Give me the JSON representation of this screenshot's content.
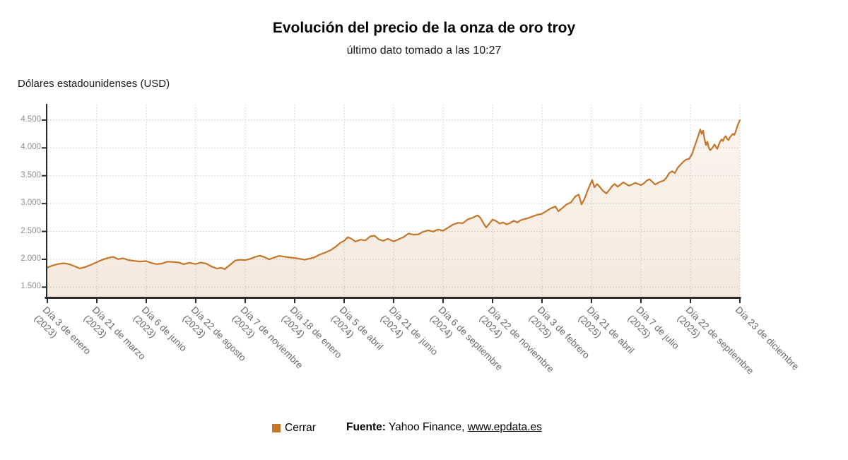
{
  "header": {
    "title": "Evolución del precio de la onza de oro troy",
    "subtitle": "último dato tomado a las 10:27"
  },
  "y_axis_title": "Dólares estadounidenses (USD)",
  "legend": {
    "label": "Cerrar"
  },
  "footer": {
    "source_label": "Fuente:",
    "source_text": " Yahoo Finance, ",
    "link_text": "www.epdata.es"
  },
  "colors": {
    "line": "#C4762A",
    "area_top": "rgba(196,118,42,0.08)",
    "area_bottom": "rgba(196,118,42,0.16)",
    "grid": "#CBD0D6",
    "axis": "#2B2B2B",
    "y_label": "#8C8C8C",
    "x_label": "#6B6B6B"
  },
  "chart_data": {
    "type": "area",
    "title": "Evolución del precio de la onza de oro troy",
    "subtitle": "último dato tomado a las 10:27",
    "ylabel": "Dólares estadounidenses (USD)",
    "xlabel": "",
    "series_name": "Cerrar",
    "legend_position": "bottom",
    "grid": true,
    "ylim": [
      1327,
      4778
    ],
    "x_span": 980,
    "y_ticks": [
      {
        "value": 1500,
        "label": "1.500"
      },
      {
        "value": 2000,
        "label": "2.000"
      },
      {
        "value": 2500,
        "label": "2.500"
      },
      {
        "value": 3000,
        "label": "3.000"
      },
      {
        "value": 3500,
        "label": "3.500"
      },
      {
        "value": 4000,
        "label": "4.000"
      },
      {
        "value": 4500,
        "label": "4.500"
      }
    ],
    "x_ticks": [
      {
        "x": 0,
        "line1": "Día 3 de enero",
        "line2": "(2023)"
      },
      {
        "x": 70,
        "line1": "Día 21 de marzo",
        "line2": "(2023)"
      },
      {
        "x": 140,
        "line1": "Día 6 de junio",
        "line2": "(2023)"
      },
      {
        "x": 210,
        "line1": "Día 22 de agosto",
        "line2": "(2023)"
      },
      {
        "x": 280,
        "line1": "Día 7 de noviembre",
        "line2": "(2023)"
      },
      {
        "x": 350,
        "line1": "Día 18 de enero",
        "line2": "(2024)"
      },
      {
        "x": 420,
        "line1": "Día 5 de abril",
        "line2": "(2024)"
      },
      {
        "x": 490,
        "line1": "Día 21 de junio",
        "line2": "(2024)"
      },
      {
        "x": 560,
        "line1": "Día 6 de septiembre",
        "line2": "(2024)"
      },
      {
        "x": 630,
        "line1": "Día 22 de noviembre",
        "line2": "(2024)"
      },
      {
        "x": 700,
        "line1": "Día 3 de febrero",
        "line2": "(2025)"
      },
      {
        "x": 770,
        "line1": "Día 21 de abril",
        "line2": "(2025)"
      },
      {
        "x": 840,
        "line1": "Día 7 de julio",
        "line2": "(2025)"
      },
      {
        "x": 910,
        "line1": "Día 22 de septiembre",
        "line2": "(2025)"
      },
      {
        "x": 980,
        "line1": "Día 23 de diciembre",
        "line2": ""
      }
    ],
    "points": [
      [
        0,
        1852
      ],
      [
        7,
        1888
      ],
      [
        15,
        1915
      ],
      [
        23,
        1930
      ],
      [
        31,
        1912
      ],
      [
        39,
        1872
      ],
      [
        46,
        1836
      ],
      [
        53,
        1858
      ],
      [
        61,
        1898
      ],
      [
        69,
        1942
      ],
      [
        77,
        1988
      ],
      [
        85,
        2022
      ],
      [
        93,
        2045
      ],
      [
        100,
        2002
      ],
      [
        107,
        2018
      ],
      [
        115,
        1985
      ],
      [
        123,
        1972
      ],
      [
        131,
        1960
      ],
      [
        140,
        1968
      ],
      [
        147,
        1935
      ],
      [
        154,
        1913
      ],
      [
        162,
        1923
      ],
      [
        170,
        1958
      ],
      [
        178,
        1952
      ],
      [
        186,
        1942
      ],
      [
        193,
        1912
      ],
      [
        201,
        1938
      ],
      [
        210,
        1915
      ],
      [
        217,
        1942
      ],
      [
        225,
        1922
      ],
      [
        232,
        1872
      ],
      [
        240,
        1833
      ],
      [
        246,
        1848
      ],
      [
        251,
        1822
      ],
      [
        259,
        1905
      ],
      [
        266,
        1978
      ],
      [
        273,
        1992
      ],
      [
        280,
        1985
      ],
      [
        287,
        2008
      ],
      [
        294,
        2042
      ],
      [
        301,
        2065
      ],
      [
        308,
        2035
      ],
      [
        314,
        1998
      ],
      [
        321,
        2032
      ],
      [
        328,
        2062
      ],
      [
        335,
        2048
      ],
      [
        343,
        2032
      ],
      [
        350,
        2025
      ],
      [
        357,
        2008
      ],
      [
        364,
        1992
      ],
      [
        371,
        2012
      ],
      [
        378,
        2035
      ],
      [
        385,
        2082
      ],
      [
        393,
        2120
      ],
      [
        401,
        2165
      ],
      [
        409,
        2235
      ],
      [
        415,
        2300
      ],
      [
        420,
        2332
      ],
      [
        425,
        2395
      ],
      [
        430,
        2372
      ],
      [
        436,
        2318
      ],
      [
        443,
        2352
      ],
      [
        450,
        2340
      ],
      [
        457,
        2412
      ],
      [
        463,
        2425
      ],
      [
        469,
        2358
      ],
      [
        475,
        2332
      ],
      [
        482,
        2368
      ],
      [
        490,
        2322
      ],
      [
        497,
        2360
      ],
      [
        504,
        2398
      ],
      [
        511,
        2462
      ],
      [
        518,
        2442
      ],
      [
        525,
        2448
      ],
      [
        532,
        2495
      ],
      [
        539,
        2520
      ],
      [
        546,
        2498
      ],
      [
        553,
        2535
      ],
      [
        560,
        2512
      ],
      [
        567,
        2568
      ],
      [
        574,
        2622
      ],
      [
        581,
        2655
      ],
      [
        588,
        2648
      ],
      [
        595,
        2718
      ],
      [
        602,
        2748
      ],
      [
        609,
        2788
      ],
      [
        613,
        2740
      ],
      [
        617,
        2650
      ],
      [
        621,
        2572
      ],
      [
        625,
        2635
      ],
      [
        630,
        2712
      ],
      [
        635,
        2688
      ],
      [
        640,
        2642
      ],
      [
        645,
        2662
      ],
      [
        650,
        2628
      ],
      [
        655,
        2652
      ],
      [
        660,
        2692
      ],
      [
        665,
        2662
      ],
      [
        670,
        2702
      ],
      [
        675,
        2722
      ],
      [
        681,
        2742
      ],
      [
        687,
        2772
      ],
      [
        693,
        2798
      ],
      [
        700,
        2818
      ],
      [
        706,
        2865
      ],
      [
        712,
        2912
      ],
      [
        719,
        2948
      ],
      [
        723,
        2862
      ],
      [
        728,
        2912
      ],
      [
        735,
        2988
      ],
      [
        741,
        3022
      ],
      [
        747,
        3128
      ],
      [
        752,
        3162
      ],
      [
        756,
        2985
      ],
      [
        760,
        3082
      ],
      [
        764,
        3218
      ],
      [
        768,
        3342
      ],
      [
        771,
        3422
      ],
      [
        774,
        3292
      ],
      [
        778,
        3352
      ],
      [
        782,
        3298
      ],
      [
        786,
        3232
      ],
      [
        791,
        3182
      ],
      [
        795,
        3242
      ],
      [
        799,
        3312
      ],
      [
        803,
        3352
      ],
      [
        807,
        3302
      ],
      [
        811,
        3342
      ],
      [
        815,
        3382
      ],
      [
        819,
        3352
      ],
      [
        823,
        3322
      ],
      [
        827,
        3342
      ],
      [
        832,
        3372
      ],
      [
        836,
        3352
      ],
      [
        840,
        3332
      ],
      [
        844,
        3362
      ],
      [
        848,
        3412
      ],
      [
        852,
        3438
      ],
      [
        856,
        3392
      ],
      [
        860,
        3342
      ],
      [
        864,
        3372
      ],
      [
        868,
        3398
      ],
      [
        872,
        3412
      ],
      [
        876,
        3462
      ],
      [
        880,
        3548
      ],
      [
        884,
        3582
      ],
      [
        888,
        3548
      ],
      [
        892,
        3642
      ],
      [
        896,
        3698
      ],
      [
        900,
        3752
      ],
      [
        904,
        3792
      ],
      [
        908,
        3802
      ],
      [
        912,
        3882
      ],
      [
        915,
        3992
      ],
      [
        918,
        4102
      ],
      [
        921,
        4212
      ],
      [
        924,
        4332
      ],
      [
        926,
        4252
      ],
      [
        928,
        4312
      ],
      [
        930,
        4152
      ],
      [
        932,
        4052
      ],
      [
        934,
        4112
      ],
      [
        936,
        4002
      ],
      [
        938,
        3958
      ],
      [
        941,
        3998
      ],
      [
        944,
        4062
      ],
      [
        946,
        4022
      ],
      [
        948,
        3982
      ],
      [
        950,
        4052
      ],
      [
        952,
        4112
      ],
      [
        954,
        4152
      ],
      [
        956,
        4122
      ],
      [
        958,
        4182
      ],
      [
        960,
        4212
      ],
      [
        962,
        4162
      ],
      [
        964,
        4142
      ],
      [
        966,
        4192
      ],
      [
        968,
        4222
      ],
      [
        970,
        4252
      ],
      [
        972,
        4232
      ],
      [
        974,
        4292
      ],
      [
        976,
        4372
      ],
      [
        978,
        4442
      ],
      [
        980,
        4498
      ]
    ]
  }
}
